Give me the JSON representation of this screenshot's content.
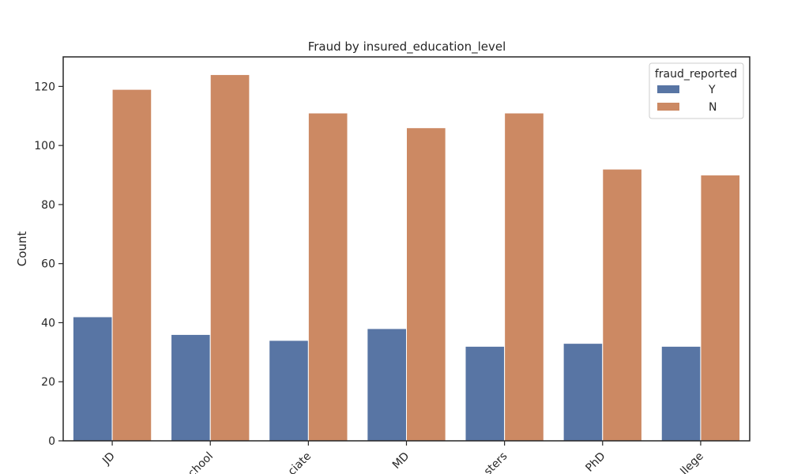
{
  "chart_data": {
    "type": "bar",
    "title": "Fraud by insured_education_level",
    "xlabel": "",
    "ylabel": "Count",
    "ylim": [
      0,
      130
    ],
    "yticks": [
      0,
      20,
      40,
      60,
      80,
      100,
      120
    ],
    "categories": [
      "JD",
      "High School",
      "Associate",
      "MD",
      "Masters",
      "PhD",
      "College"
    ],
    "category_labels_visible": [
      "JD",
      "chool",
      "ciate",
      "MD",
      "sters",
      "PhD",
      "llege"
    ],
    "series": [
      {
        "name": "Y",
        "color": "#5875a4",
        "values": [
          42,
          36,
          34,
          38,
          32,
          33,
          32
        ]
      },
      {
        "name": "N",
        "color": "#cc8963",
        "values": [
          119,
          124,
          111,
          106,
          111,
          92,
          90
        ]
      }
    ],
    "legend": {
      "title": "fraud_reported",
      "placement": "top-right"
    },
    "grid": false
  }
}
